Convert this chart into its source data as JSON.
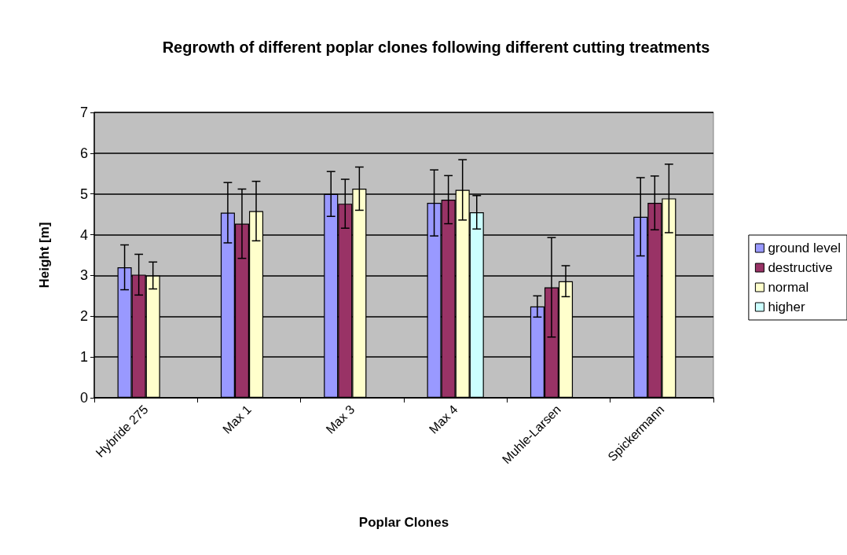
{
  "chart_data": {
    "type": "bar",
    "title": "Regrowth of different poplar clones following different cutting treatments",
    "xlabel": "Poplar Clones",
    "ylabel": "Height [m]",
    "categories": [
      "Hybride 275",
      "Max 1",
      "Max 3",
      "Max 4",
      "Muhle-Larsen",
      "Spickermann"
    ],
    "series": [
      {
        "name": "ground level",
        "color": "#9999ff",
        "values": [
          3.2,
          4.54,
          5.0,
          4.78,
          2.24,
          4.44
        ],
        "errors": [
          0.55,
          0.74,
          0.55,
          0.81,
          0.26,
          0.96
        ]
      },
      {
        "name": "destructive",
        "color": "#993366",
        "values": [
          3.02,
          4.27,
          4.76,
          4.86,
          2.71,
          4.78
        ],
        "errors": [
          0.5,
          0.85,
          0.6,
          0.59,
          1.22,
          0.66
        ]
      },
      {
        "name": "normal",
        "color": "#ffffcc",
        "values": [
          3.0,
          4.58,
          5.13,
          5.1,
          2.86,
          4.89
        ],
        "errors": [
          0.33,
          0.73,
          0.53,
          0.74,
          0.38,
          0.84
        ]
      },
      {
        "name": "higher",
        "color": "#ccffff",
        "values": [
          null,
          null,
          null,
          4.55,
          null,
          null
        ],
        "errors": [
          null,
          null,
          null,
          0.41,
          null,
          null
        ]
      }
    ],
    "ylim": [
      0,
      7
    ],
    "yticks": [
      0,
      1,
      2,
      3,
      4,
      5,
      6,
      7
    ],
    "grid": "y",
    "legend": "right"
  }
}
